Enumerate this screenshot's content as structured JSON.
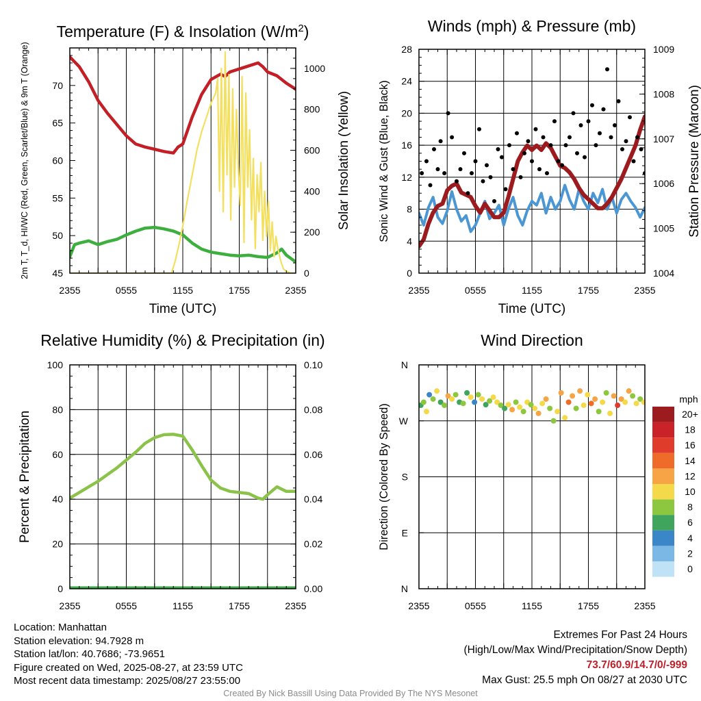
{
  "colors": {
    "temp_red": "#c21f26",
    "heat_index_green": "#3daf3e",
    "insolation_yellow": "#f4e060",
    "wind_blue": "#4b97d3",
    "gust_black": "#000000",
    "pressure_maroon": "#9b1b1f",
    "rh_green": "#8bc34a",
    "precip_green": "#3cab4a"
  },
  "info": {
    "location": "Location: Manhattan",
    "elevation": "Station elevation: 94.7928 m",
    "latlon": "Station lat/lon: 40.7686; -73.9651",
    "created": "Figure created on Wed, 2025-08-27, at 23:59 UTC",
    "recent": "Most recent data timestamp: 2025/08/27 23:55:00"
  },
  "extremes": {
    "title": "Extremes For Past 24 Hours",
    "subtitle": "(High/Low/Max Wind/Precipitation/Snow Depth)",
    "values": "73.7/60.9/14.7/0/-999",
    "gust": "Max Gust: 25.5 mph On 08/27 at 2030 UTC"
  },
  "credit": "Created By Nick Bassill Using Data Provided By The NYS Mesonet",
  "chart_data": [
    {
      "type": "line",
      "title": "Temperature (F) & Insolation (W/m²)",
      "xlabel": "Time (UTC)",
      "ylabel": "2m T, T_d, HI/WC (Red, Green, Scarlet/Blue) & 9m T (Orange)",
      "ylabel_right": "Solar Insolation (Yellow)",
      "x_ticks": [
        "2355",
        "0555",
        "1155",
        "1755",
        "2355"
      ],
      "x_hours": [
        0,
        3,
        6,
        9,
        12,
        15,
        18,
        21,
        24
      ],
      "ylim": [
        45,
        75
      ],
      "y_ticks": [
        45,
        50,
        55,
        60,
        65,
        70
      ],
      "ylim_right": [
        0,
        1100
      ],
      "y_ticks_right": [
        0,
        200,
        400,
        600,
        800,
        1000
      ],
      "series": [
        {
          "name": "2m T",
          "axis": "left",
          "x": [
            0,
            1,
            2,
            3,
            4,
            5,
            6,
            7,
            8,
            9,
            10,
            11,
            11.5,
            12,
            13,
            14,
            15,
            16,
            16.5,
            17,
            18,
            19,
            20,
            20.5,
            21,
            22,
            23,
            24
          ],
          "y": [
            73.8,
            72.5,
            70.5,
            68.0,
            66.3,
            64.8,
            63.3,
            62.2,
            61.8,
            61.5,
            61.2,
            61.0,
            61.8,
            62.2,
            65.8,
            68.8,
            70.8,
            71.5,
            71.2,
            71.8,
            72.2,
            72.6,
            73.0,
            72.5,
            71.8,
            71.3,
            70.3,
            69.5
          ]
        },
        {
          "name": "2m Td",
          "axis": "left",
          "x": [
            0,
            0.5,
            1,
            2,
            3,
            4,
            5,
            6,
            7,
            8,
            9,
            10,
            11,
            12,
            13,
            14,
            15,
            16,
            17,
            18,
            19,
            20,
            21,
            22,
            22.5,
            23,
            24
          ],
          "y": [
            47.2,
            48.8,
            49.0,
            49.3,
            48.8,
            49.2,
            49.5,
            50.1,
            50.6,
            51.0,
            51.1,
            50.9,
            50.6,
            50.1,
            49.0,
            48.2,
            47.8,
            47.6,
            47.4,
            47.3,
            47.4,
            47.2,
            47.1,
            47.7,
            48.2,
            47.4,
            46.5
          ]
        },
        {
          "name": "Insolation",
          "axis": "right",
          "x": [
            0,
            10.8,
            11.2,
            11.6,
            12.0,
            12.5,
            13.0,
            13.5,
            14.0,
            14.5,
            15.0,
            15.5,
            15.7,
            15.9,
            16.1,
            16.3,
            16.5,
            16.7,
            16.9,
            17.1,
            17.3,
            17.5,
            17.7,
            17.9,
            18.1,
            18.3,
            18.5,
            18.7,
            18.9,
            19.1,
            19.3,
            19.5,
            19.7,
            19.9,
            20.1,
            20.3,
            20.5,
            20.7,
            20.9,
            21.1,
            21.3,
            21.5,
            21.7,
            21.9,
            22.1,
            22.4,
            22.7,
            23.0,
            23.4,
            24
          ],
          "y": [
            0,
            0,
            60,
            140,
            230,
            360,
            480,
            600,
            690,
            760,
            830,
            880,
            950,
            400,
            1000,
            300,
            1080,
            480,
            970,
            260,
            900,
            420,
            800,
            520,
            330,
            960,
            150,
            880,
            420,
            700,
            260,
            560,
            120,
            480,
            300,
            540,
            160,
            400,
            180,
            350,
            110,
            250,
            80,
            180,
            120,
            60,
            20,
            10,
            0,
            0
          ]
        }
      ]
    },
    {
      "type": "line",
      "title": "Winds (mph) & Pressure (mb)",
      "xlabel": "Time (UTC)",
      "ylabel": "Sonic Wind & Gust (Blue, Black)",
      "ylabel_right": "Station Pressure (Maroon)",
      "x_ticks": [
        "2355",
        "0555",
        "1155",
        "1755",
        "2355"
      ],
      "ylim": [
        0,
        28
      ],
      "y_ticks": [
        0,
        4,
        8,
        12,
        16,
        20,
        24,
        28
      ],
      "ylim_right": [
        1004,
        1009
      ],
      "y_ticks_right": [
        1004,
        1005,
        1006,
        1007,
        1008,
        1009
      ],
      "series": [
        {
          "name": "Sonic Wind",
          "axis": "left",
          "x": [
            0,
            0.5,
            1,
            1.5,
            2,
            2.5,
            3,
            3.5,
            4,
            4.5,
            5,
            5.5,
            6,
            6.5,
            7,
            7.5,
            8,
            8.5,
            9,
            9.5,
            10,
            10.5,
            11,
            11.5,
            12,
            12.5,
            13,
            13.5,
            14,
            14.5,
            15,
            15.5,
            16,
            16.5,
            17,
            17.5,
            18,
            18.5,
            19,
            19.5,
            20,
            20.5,
            21,
            21.5,
            22,
            22.5,
            23,
            23.5,
            24
          ],
          "y": [
            7.5,
            6.0,
            8.2,
            9.5,
            7.0,
            6.2,
            7.8,
            10.2,
            8.0,
            6.5,
            7.2,
            5.2,
            6.0,
            7.5,
            9.0,
            6.8,
            7.5,
            8.5,
            6.0,
            8.0,
            9.5,
            7.2,
            6.0,
            7.8,
            9.0,
            8.5,
            10.0,
            7.5,
            9.5,
            8.0,
            9.0,
            11.0,
            9.2,
            8.0,
            10.5,
            9.0,
            8.0,
            10.0,
            8.8,
            10.5,
            8.0,
            9.5,
            7.5,
            9.2,
            10.0,
            9.0,
            8.2,
            7.0,
            8.2
          ]
        },
        {
          "name": "Station Pressure",
          "axis": "right",
          "x": [
            0,
            0.5,
            1,
            1.5,
            2,
            2.5,
            3,
            3.5,
            4,
            4.5,
            5,
            5.5,
            6,
            6.5,
            7,
            7.5,
            8,
            8.5,
            9,
            9.5,
            10,
            10.5,
            11,
            11.5,
            12,
            12.5,
            13,
            13.5,
            14,
            14.5,
            15,
            15.5,
            16,
            16.5,
            17,
            17.5,
            18,
            18.5,
            19,
            19.5,
            20,
            20.5,
            21,
            21.5,
            22,
            22.5,
            23,
            23.5,
            24
          ],
          "y": [
            1004.6,
            1004.75,
            1005.1,
            1005.35,
            1005.5,
            1005.55,
            1005.85,
            1005.95,
            1006.0,
            1005.8,
            1005.75,
            1005.7,
            1005.5,
            1005.35,
            1005.55,
            1005.4,
            1005.25,
            1005.25,
            1005.35,
            1005.7,
            1006.1,
            1006.5,
            1006.7,
            1006.85,
            1006.75,
            1006.85,
            1006.75,
            1006.9,
            1006.8,
            1006.6,
            1006.4,
            1006.35,
            1006.25,
            1006.1,
            1005.9,
            1005.75,
            1005.65,
            1005.55,
            1005.45,
            1005.45,
            1005.55,
            1005.7,
            1005.9,
            1006.1,
            1006.35,
            1006.6,
            1006.85,
            1007.2,
            1007.5
          ]
        },
        {
          "name": "Gust",
          "axis": "left",
          "marker": "dot",
          "x": [
            0.3,
            0.8,
            1.2,
            1.6,
            2.0,
            2.3,
            2.7,
            3.1,
            3.5,
            4.0,
            4.4,
            4.8,
            5.2,
            5.6,
            6.0,
            6.4,
            6.8,
            7.2,
            7.6,
            8.0,
            8.4,
            8.8,
            9.2,
            9.6,
            10.0,
            10.4,
            10.8,
            11.2,
            11.6,
            12.0,
            12.4,
            12.8,
            13.2,
            13.6,
            14.0,
            14.4,
            14.8,
            15.2,
            15.6,
            16.0,
            16.4,
            16.8,
            17.2,
            17.6,
            18.0,
            18.4,
            18.8,
            19.2,
            19.6,
            20.0,
            20.4,
            20.8,
            21.2,
            21.6,
            22.0,
            22.4,
            22.8,
            23.2,
            23.6,
            24.0
          ],
          "y": [
            12.5,
            14.0,
            11.0,
            15.5,
            13.0,
            16.5,
            12.5,
            20.0,
            17.0,
            11.5,
            13.0,
            15.0,
            10.0,
            12.5,
            14.0,
            18.0,
            11.5,
            13.5,
            12.0,
            9.0,
            15.5,
            14.5,
            10.5,
            16.0,
            13.0,
            17.5,
            12.0,
            15.0,
            16.5,
            14.0,
            18.0,
            13.0,
            17.0,
            12.5,
            16.0,
            19.0,
            14.0,
            13.5,
            16.0,
            17.0,
            20.0,
            15.0,
            18.5,
            14.5,
            19.0,
            21.0,
            16.0,
            17.5,
            20.5,
            25.5,
            17.0,
            18.5,
            21.5,
            15.5,
            16.5,
            19.5,
            14.0,
            17.0,
            15.5,
            12.5
          ]
        }
      ]
    },
    {
      "type": "line",
      "title": "Relative Humidity (%) & Precipitation (in)",
      "xlabel": "",
      "ylabel": "Percent & Precipitation",
      "x_ticks": [
        "2355",
        "0555",
        "1155",
        "1755",
        "2355"
      ],
      "ylim": [
        0,
        100
      ],
      "y_ticks": [
        0,
        20,
        40,
        60,
        80,
        100
      ],
      "ylim_right": [
        0,
        0.1
      ],
      "y_ticks_right": [
        "0.00",
        "0.02",
        "0.04",
        "0.06",
        "0.08",
        "0.10"
      ],
      "series": [
        {
          "name": "RH",
          "axis": "left",
          "x": [
            0,
            1,
            2,
            3,
            4,
            5,
            6,
            7,
            8,
            9,
            10,
            11,
            12,
            13,
            14,
            15,
            16,
            17,
            18,
            19,
            20,
            20.5,
            21,
            22,
            23,
            24
          ],
          "y": [
            40.5,
            43.0,
            45.5,
            48.0,
            51.0,
            54.0,
            57.5,
            61.0,
            65.0,
            67.5,
            68.8,
            69.0,
            68.2,
            62.0,
            55.0,
            48.5,
            45.0,
            43.5,
            43.0,
            42.5,
            40.5,
            40.0,
            42.0,
            45.5,
            43.5,
            43.5
          ]
        },
        {
          "name": "Precipitation",
          "axis": "right",
          "x": [
            0,
            24
          ],
          "y": [
            0,
            0
          ]
        }
      ]
    },
    {
      "type": "scatter",
      "title": "Wind Direction",
      "xlabel": "",
      "ylabel": "Direction (Colored By Speed)",
      "x_ticks": [
        "2355",
        "0555",
        "1155",
        "1755",
        "2355"
      ],
      "y_ticks": [
        "N",
        "W",
        "S",
        "E",
        "N"
      ],
      "ylim": [
        0,
        360
      ],
      "colorbar": {
        "title": "mph",
        "labels": [
          "20+",
          "18",
          "16",
          "14",
          "12",
          "10",
          "8",
          "6",
          "4",
          "2",
          "0"
        ],
        "colors": [
          "#9b1b1f",
          "#c92228",
          "#e03c2c",
          "#ef6b2a",
          "#f6a445",
          "#f4da4a",
          "#8dc63f",
          "#3fa45c",
          "#3b86c6",
          "#7bb8e6",
          "#bfe2f7"
        ]
      },
      "series": [
        {
          "name": "Wind Direction",
          "x": [
            0.2,
            0.5,
            0.8,
            1.1,
            1.5,
            1.9,
            2.3,
            2.7,
            3.1,
            3.5,
            3.9,
            4.3,
            4.7,
            5.1,
            5.5,
            5.9,
            6.3,
            6.7,
            7.1,
            7.5,
            7.9,
            8.3,
            8.7,
            9.1,
            9.5,
            9.9,
            10.3,
            10.7,
            11.1,
            11.5,
            11.9,
            12.3,
            12.7,
            13.1,
            13.5,
            13.9,
            14.3,
            14.7,
            15.1,
            15.5,
            15.9,
            16.3,
            16.7,
            17.1,
            17.5,
            17.9,
            18.3,
            18.7,
            19.1,
            19.5,
            19.9,
            20.3,
            20.7,
            21.1,
            21.5,
            21.9,
            22.3,
            22.7,
            23.1,
            23.5,
            23.9
          ],
          "y": [
            295,
            300,
            285,
            312,
            305,
            318,
            300,
            295,
            310,
            305,
            312,
            300,
            298,
            315,
            308,
            300,
            312,
            305,
            296,
            302,
            308,
            300,
            295,
            290,
            296,
            288,
            300,
            292,
            285,
            300,
            296,
            290,
            282,
            298,
            305,
            290,
            270,
            285,
            315,
            275,
            300,
            310,
            290,
            318,
            295,
            312,
            298,
            305,
            285,
            300,
            315,
            282,
            310,
            295,
            305,
            300,
            318,
            310,
            298,
            305,
            300
          ],
          "speed": [
            6,
            8,
            9,
            4,
            7,
            10,
            6,
            8,
            11,
            9,
            7,
            5,
            8,
            6,
            9,
            4,
            7,
            10,
            6,
            8,
            9,
            10,
            7,
            6,
            9,
            11,
            8,
            10,
            7,
            9,
            8,
            10,
            12,
            9,
            11,
            8,
            7,
            10,
            12,
            9,
            14,
            11,
            8,
            12,
            10,
            9,
            13,
            11,
            8,
            10,
            7,
            9,
            11,
            16,
            12,
            10,
            12,
            8,
            10,
            7,
            9
          ]
        }
      ]
    }
  ]
}
